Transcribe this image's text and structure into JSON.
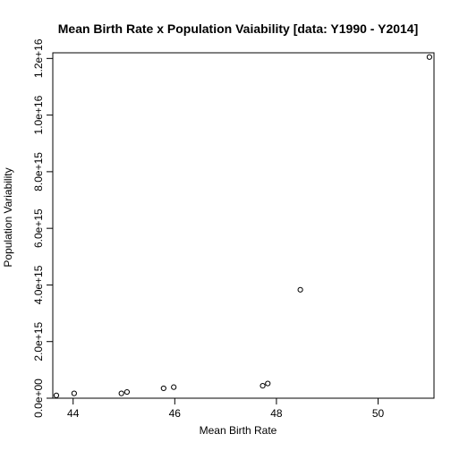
{
  "chart_data": {
    "type": "scatter",
    "title": "Mean Birth Rate x Population Vaiability [data: Y1990 - Y2014]",
    "xlabel": "Mean Birth Rate",
    "ylabel": "Population Variability",
    "xlim": [
      43.6,
      51.1
    ],
    "ylim": [
      0,
      1.22e+16
    ],
    "x_ticks": [
      44,
      46,
      48,
      50
    ],
    "x_tick_labels": [
      "44",
      "46",
      "48",
      "50"
    ],
    "y_ticks": [
      0,
      2000000000000000.0,
      4000000000000000.0,
      6000000000000000.0,
      8000000000000000.0,
      1e+16,
      1.2e+16
    ],
    "y_tick_labels": [
      "0.0e+00",
      "2.0e+15",
      "4.0e+15",
      "6.0e+15",
      "8.0e+15",
      "1.0e+16",
      "1.2e+16"
    ],
    "grid": false,
    "legend": "none",
    "points": [
      {
        "x": 43.67,
        "y": 100000000000000.0
      },
      {
        "x": 44.02,
        "y": 170000000000000.0
      },
      {
        "x": 44.95,
        "y": 170000000000000.0
      },
      {
        "x": 45.06,
        "y": 220000000000000.0
      },
      {
        "x": 45.78,
        "y": 350000000000000.0
      },
      {
        "x": 45.98,
        "y": 390000000000000.0
      },
      {
        "x": 47.73,
        "y": 440000000000000.0
      },
      {
        "x": 47.83,
        "y": 520000000000000.0
      },
      {
        "x": 48.47,
        "y": 3830000000000000.0
      },
      {
        "x": 51.01,
        "y": 1.205e+16
      }
    ]
  }
}
